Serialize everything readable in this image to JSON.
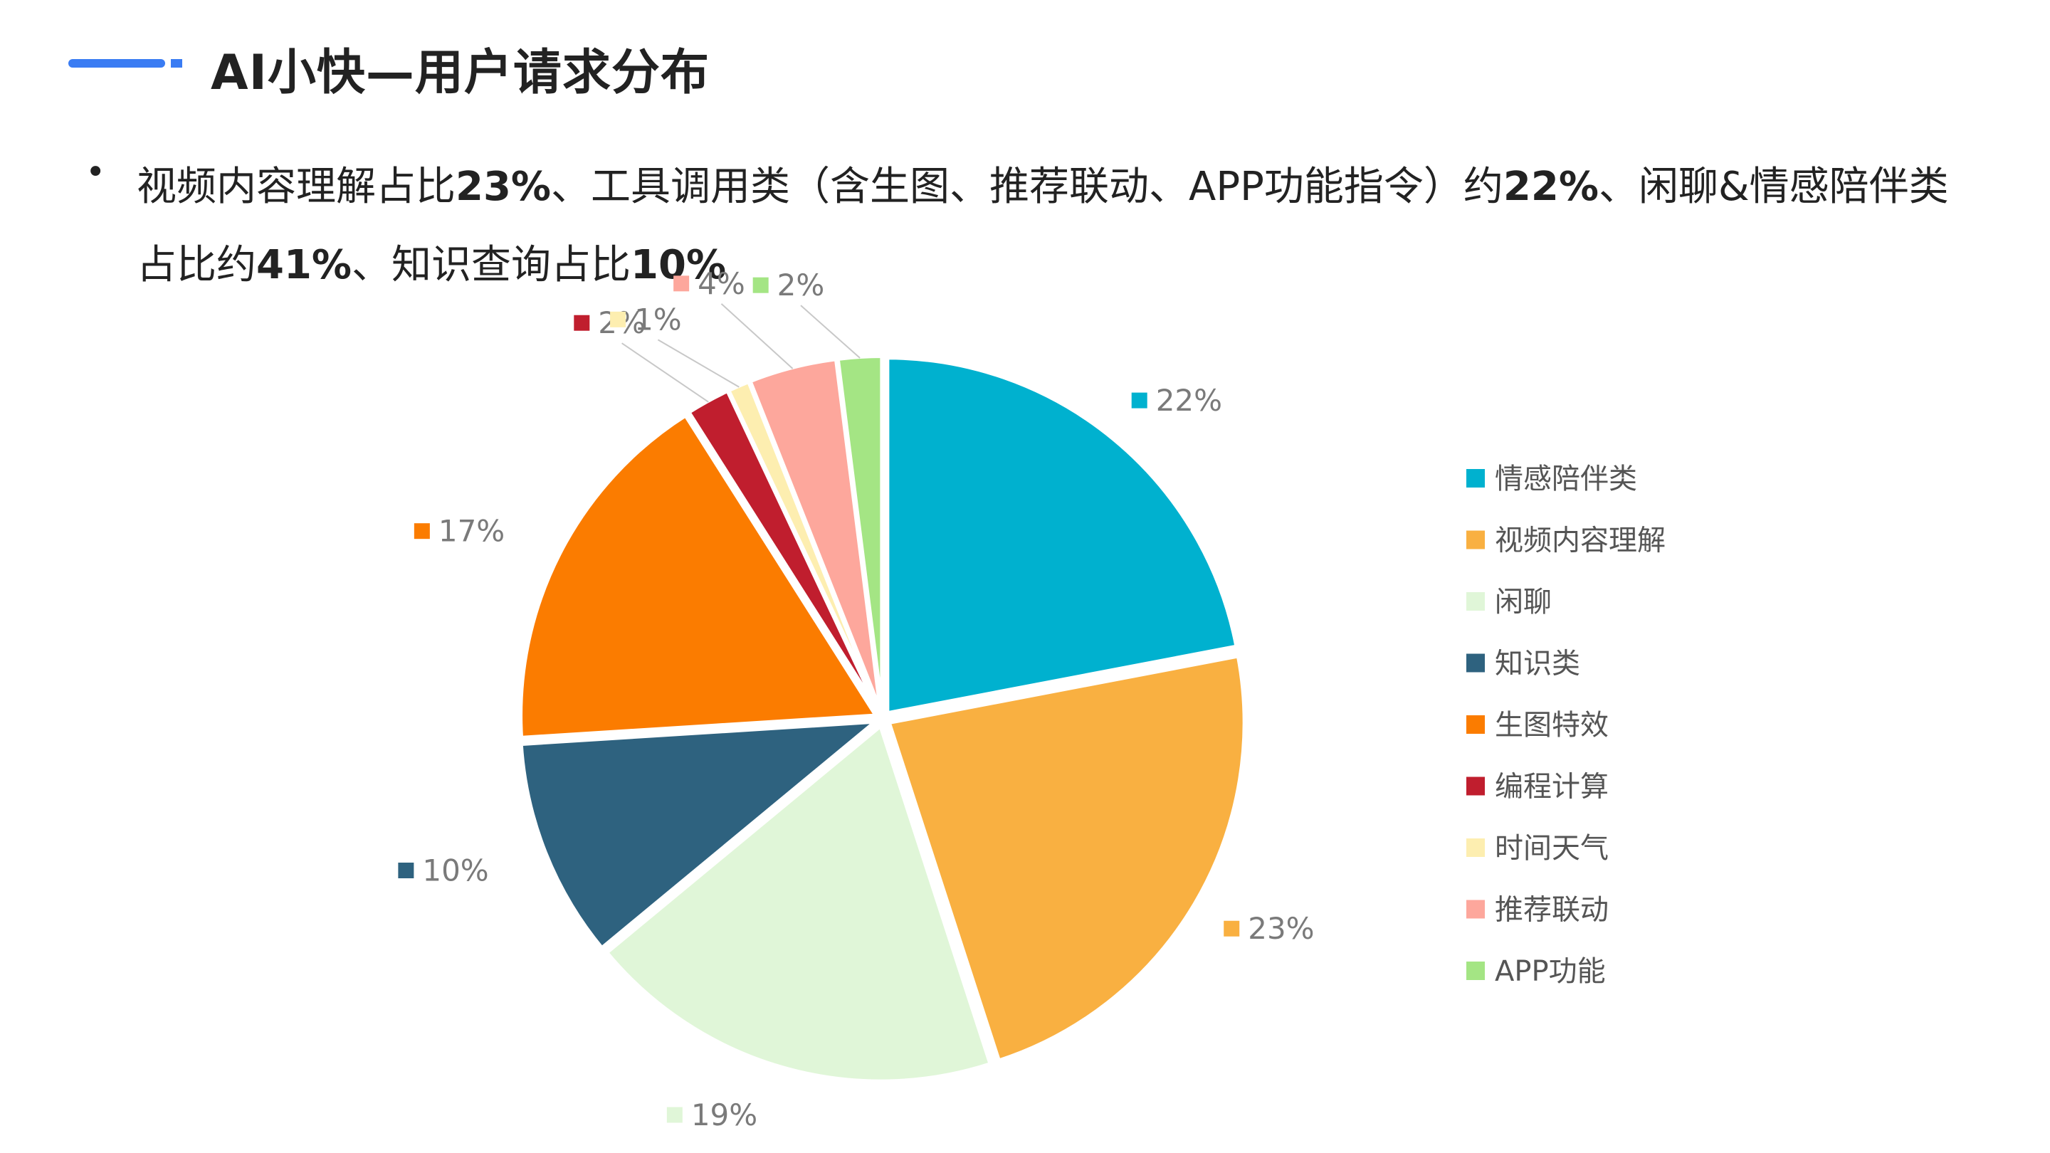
{
  "header": {
    "title": "AI小快—用户请求分布"
  },
  "summary": {
    "p1": "视频内容理解占比",
    "v1": "23%",
    "p2": "、工具调用类（含生图、推荐联动、APP功能指令）约",
    "v2": "22%",
    "p3": "、闲聊&情感陪伴类占比约",
    "v3": "41%",
    "p4": "、知识查询占比",
    "v4": "10%"
  },
  "chart_data": {
    "type": "pie",
    "categories": [
      "情感陪伴类",
      "视频内容理解",
      "闲聊",
      "知识类",
      "生图特效",
      "编程计算",
      "时间天气",
      "推荐联动",
      "APP功能"
    ],
    "values": [
      22,
      23,
      19,
      10,
      17,
      2,
      1,
      4,
      2
    ],
    "labels": [
      "22%",
      "23%",
      "19%",
      "10%",
      "17%",
      "2%",
      "1%",
      "4%",
      "2%"
    ],
    "colors": [
      "#00b1cf",
      "#f9b041",
      "#e0f6d8",
      "#2e627f",
      "#fb7c00",
      "#c01e2e",
      "#fdeeb0",
      "#fda79c",
      "#a4e584"
    ],
    "legend_position": "right"
  }
}
